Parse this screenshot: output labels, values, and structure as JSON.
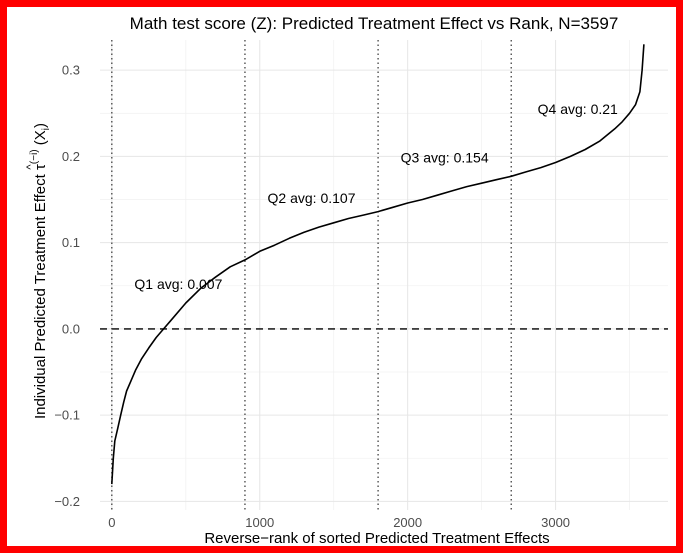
{
  "chart_data": {
    "type": "line",
    "title": "Math test score (Z): Predicted Treatment Effect vs Rank, N=3597",
    "xlabel": "Reverse−rank of sorted Predicted Treatment Effects",
    "ylabel": "Individual Predicted Treatment Effect τ̂(−i)(Xi)",
    "ylabel_parts": {
      "text": "Individual Predicted Treatment Effect ",
      "tau": "τ",
      "hat": "^",
      "superscript": "(−i)",
      "arg": " (X",
      "arg_sub": "i",
      "arg_close": ")"
    },
    "xlim": [
      -80,
      3760
    ],
    "ylim": [
      -0.21,
      0.335
    ],
    "grid": true,
    "x_ticks": [
      0,
      1000,
      2000,
      3000
    ],
    "x_tick_labels": [
      "0",
      "1000",
      "2000",
      "3000"
    ],
    "y_ticks": [
      -0.2,
      -0.1,
      0.0,
      0.1,
      0.2,
      0.3
    ],
    "y_tick_labels": [
      "−0.2",
      "−0.1",
      "0.0",
      "0.1",
      "0.2",
      "0.3"
    ],
    "hline": {
      "y": 0.0,
      "style": "dashed"
    },
    "vlines": [
      {
        "x": 0,
        "style": "dotted"
      },
      {
        "x": 900,
        "style": "dotted"
      },
      {
        "x": 1800,
        "style": "dotted"
      },
      {
        "x": 2700,
        "style": "dotted"
      }
    ],
    "annotations": [
      {
        "text": "Q1 avg: 0.007",
        "x": 450,
        "y": 0.052
      },
      {
        "text": "Q2 avg: 0.107",
        "x": 1350,
        "y": 0.152
      },
      {
        "text": "Q3 avg: 0.154",
        "x": 2250,
        "y": 0.199
      },
      {
        "text": "Q4 avg: 0.21",
        "x": 3150,
        "y": 0.255
      }
    ],
    "series": [
      {
        "color": "#000000",
        "x": [
          0,
          10,
          20,
          40,
          60,
          80,
          100,
          130,
          160,
          200,
          250,
          300,
          350,
          400,
          500,
          600,
          700,
          800,
          900,
          1000,
          1100,
          1200,
          1300,
          1400,
          1500,
          1600,
          1700,
          1800,
          1900,
          2000,
          2100,
          2200,
          2300,
          2400,
          2500,
          2600,
          2700,
          2800,
          2900,
          3000,
          3100,
          3200,
          3300,
          3400,
          3450,
          3500,
          3540,
          3570,
          3585,
          3597
        ],
        "y": [
          -0.18,
          -0.15,
          -0.13,
          -0.115,
          -0.1,
          -0.085,
          -0.072,
          -0.06,
          -0.048,
          -0.035,
          -0.022,
          -0.01,
          0.0,
          0.01,
          0.03,
          0.047,
          0.06,
          0.072,
          0.08,
          0.09,
          0.097,
          0.105,
          0.112,
          0.118,
          0.123,
          0.128,
          0.132,
          0.136,
          0.141,
          0.146,
          0.15,
          0.155,
          0.16,
          0.165,
          0.169,
          0.173,
          0.177,
          0.182,
          0.187,
          0.193,
          0.2,
          0.208,
          0.218,
          0.232,
          0.24,
          0.25,
          0.26,
          0.275,
          0.3,
          0.33
        ]
      }
    ]
  }
}
